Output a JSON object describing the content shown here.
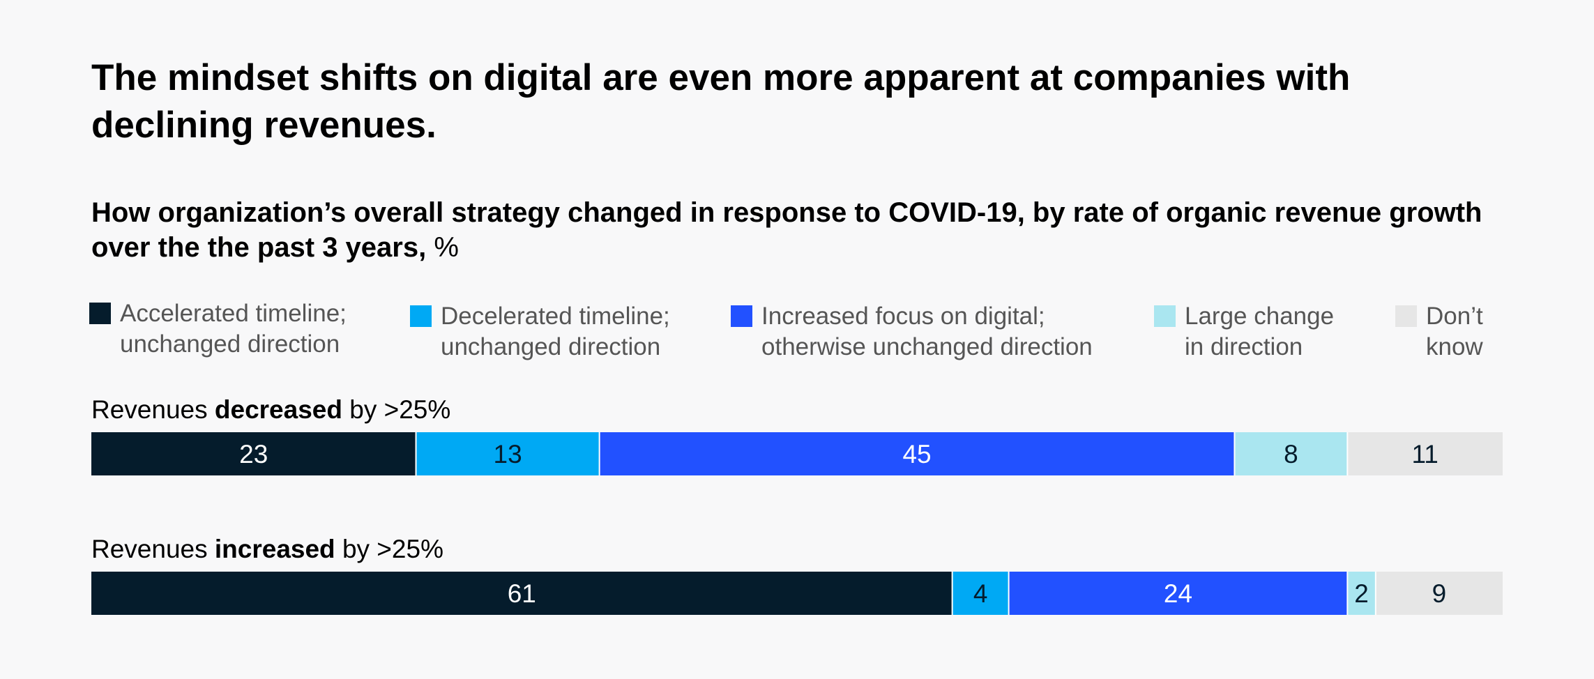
{
  "title": "The mindset shifts on digital are even more apparent at companies with declining revenues.",
  "subtitle_bold": "How organization’s overall strategy changed in response to COVID-19, by rate of organic revenue growth over the the past 3 years, ",
  "subtitle_unit": "%",
  "legend": [
    {
      "label": "Accelerated timeline;\nunchanged direction",
      "color": "#051c2c"
    },
    {
      "label": "Decelerated timeline;\nunchanged direction",
      "color": "#00a9f4"
    },
    {
      "label": "Increased focus on digital;\notherwise unchanged direction",
      "color": "#2251ff"
    },
    {
      "label": "Large change\nin direction",
      "color": "#aae6f0"
    },
    {
      "label": "Don’t\nknow",
      "color": "#e6e6e6"
    }
  ],
  "rows": [
    {
      "pre": "Revenues ",
      "bold": "decreased",
      "post": " by >25%"
    },
    {
      "pre": "Revenues ",
      "bold": "increased",
      "post": " by >25%"
    }
  ],
  "chart_data": {
    "type": "bar",
    "stacked": true,
    "orientation": "horizontal",
    "categories": [
      "Revenues decreased by >25%",
      "Revenues increased by >25%"
    ],
    "series": [
      {
        "name": "Accelerated timeline; unchanged direction",
        "values": [
          23,
          61
        ],
        "color": "#051c2c",
        "label_color": "#ffffff"
      },
      {
        "name": "Decelerated timeline; unchanged direction",
        "values": [
          13,
          4
        ],
        "color": "#00a9f4",
        "label_color": "#051c2c"
      },
      {
        "name": "Increased focus on digital; otherwise unchanged direction",
        "values": [
          45,
          24
        ],
        "color": "#2251ff",
        "label_color": "#ffffff"
      },
      {
        "name": "Large change in direction",
        "values": [
          8,
          2
        ],
        "color": "#aae6f0",
        "label_color": "#051c2c"
      },
      {
        "name": "Don’t know",
        "values": [
          11,
          9
        ],
        "color": "#e6e6e6",
        "label_color": "#051c2c"
      }
    ],
    "unit": "%",
    "xlim": [
      0,
      100
    ],
    "grid": false,
    "legend_position": "top"
  }
}
